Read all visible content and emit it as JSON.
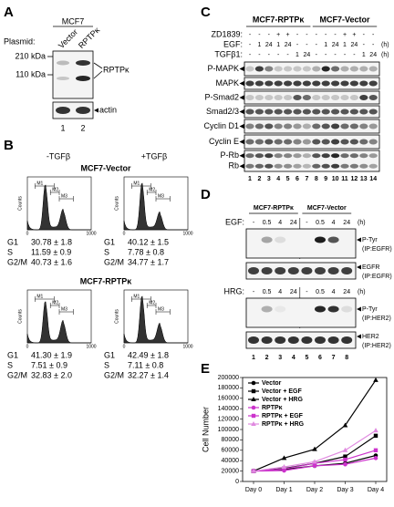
{
  "panels": {
    "A": {
      "letter": "A",
      "cell_line": "MCF7",
      "plasmid_label": "Plasmid:",
      "plasmids": [
        "Vector",
        "RPTPκ"
      ],
      "size_markers": [
        "210 kDa",
        "110 kDa"
      ],
      "bands": [
        "RPTPκ",
        "actin"
      ],
      "lanes": [
        1,
        2
      ]
    },
    "B": {
      "letter": "B",
      "conditions": [
        "-TGFβ",
        "+TGFβ"
      ],
      "y_axis_label": "Counts",
      "x_ticks": [
        "0",
        "1000"
      ],
      "gates": [
        "M1",
        "M2",
        "M3"
      ],
      "groups": [
        {
          "name": "MCF7-Vector",
          "plots": [
            {
              "stats": [
                {
                  "phase": "G1",
                  "value": "30.78 ± 1.8"
                },
                {
                  "phase": "S",
                  "value": "11.59 ± 0.9"
                },
                {
                  "phase": "G2/M",
                  "value": "40.73 ± 1.6"
                }
              ]
            },
            {
              "stats": [
                {
                  "phase": "G1",
                  "value": "40.12 ± 1.5"
                },
                {
                  "phase": "S",
                  "value": "7.78 ± 0.8"
                },
                {
                  "phase": "G2/M",
                  "value": "34.77 ± 1.7"
                }
              ]
            }
          ]
        },
        {
          "name": "MCF7-RPTPκ",
          "plots": [
            {
              "stats": [
                {
                  "phase": "G1",
                  "value": "41.30 ± 1.9"
                },
                {
                  "phase": "S",
                  "value": "7.51 ± 0.9"
                },
                {
                  "phase": "G2/M",
                  "value": "32.83 ± 2.0"
                }
              ]
            },
            {
              "stats": [
                {
                  "phase": "G1",
                  "value": "42.49 ± 1.8"
                },
                {
                  "phase": "S",
                  "value": "7.11 ± 0.8"
                },
                {
                  "phase": "G2/M",
                  "value": "32.27 ± 1.4"
                }
              ]
            }
          ]
        }
      ]
    },
    "C": {
      "letter": "C",
      "groups": [
        "MCF7-RPTPκ",
        "MCF7-Vector"
      ],
      "treatments": [
        {
          "label": "ZD1839:",
          "values": [
            "-",
            "-",
            "-",
            "+",
            "+",
            "-",
            "-",
            "-",
            "-",
            "-",
            "+",
            "+",
            "-",
            "-"
          ]
        },
        {
          "label": "EGF:",
          "values": [
            "-",
            "1",
            "24",
            "1",
            "24",
            "-",
            "-",
            "-",
            "1",
            "24",
            "1",
            "24",
            "-",
            "-"
          ],
          "unit": "(h)"
        },
        {
          "label": "TGFβ1:",
          "values": [
            "-",
            "-",
            "-",
            "-",
            "-",
            "1",
            "24",
            "-",
            "-",
            "-",
            "-",
            "-",
            "1",
            "24"
          ],
          "unit": "(h)"
        }
      ],
      "blots": [
        {
          "labels": [
            "P-MAPK"
          ]
        },
        {
          "labels": [
            "MAPK"
          ]
        },
        {
          "labels": [
            "P-Smad2"
          ]
        },
        {
          "labels": [
            "Smad2/3"
          ]
        },
        {
          "labels": [
            "Cyclin D1"
          ]
        },
        {
          "labels": [
            "Cyclin E"
          ]
        },
        {
          "labels": [
            "P-Rb",
            "Rb"
          ]
        }
      ],
      "lanes": [
        1,
        2,
        3,
        4,
        5,
        6,
        7,
        8,
        9,
        10,
        11,
        12,
        13,
        14
      ]
    },
    "D": {
      "letter": "D",
      "groups": [
        "MCF7-RPTPκ",
        "MCF7-Vector"
      ],
      "sections": [
        {
          "treatment": "EGF:",
          "values": [
            "-",
            "0.5",
            "4",
            "24",
            "-",
            "0.5",
            "4",
            "24"
          ],
          "unit": "(h)",
          "blots": [
            {
              "labels": [
                "P-Tyr",
                "(IP:EGFR)"
              ]
            },
            {
              "labels": [
                "EGFR",
                "(IP:EGFR)"
              ]
            }
          ]
        },
        {
          "treatment": "HRG:",
          "values": [
            "-",
            "0.5",
            "4",
            "24",
            "-",
            "0.5",
            "4",
            "24"
          ],
          "unit": "(h)",
          "blots": [
            {
              "labels": [
                "P-Tyr",
                "(IP:HER2)"
              ]
            },
            {
              "labels": [
                "HER2",
                "(IP:HER2)"
              ]
            }
          ]
        }
      ],
      "lanes": [
        1,
        2,
        3,
        4,
        5,
        6,
        7,
        8
      ]
    },
    "E": {
      "letter": "E"
    }
  },
  "chart_data": {
    "type": "line",
    "y_axis_label": "Cell Number",
    "categories": [
      "Day 0",
      "Day 1",
      "Day 2",
      "Day 3",
      "Day 4"
    ],
    "ylim": [
      0,
      200000
    ],
    "yticks": [
      0,
      20000,
      40000,
      60000,
      80000,
      100000,
      120000,
      140000,
      160000,
      180000,
      200000
    ],
    "legend": "upper left",
    "series": [
      {
        "name": "Vector",
        "color": "#000000",
        "marker": "circle",
        "values": [
          20000,
          23000,
          30000,
          35000,
          50000
        ]
      },
      {
        "name": "Vector + EGF",
        "color": "#000000",
        "marker": "square",
        "values": [
          20000,
          25000,
          35000,
          48000,
          88000
        ]
      },
      {
        "name": "Vector + HRG",
        "color": "#000000",
        "marker": "triangle",
        "values": [
          20000,
          45000,
          62000,
          108000,
          195000
        ]
      },
      {
        "name": "RPTPκ",
        "color": "#cc33cc",
        "marker": "circle",
        "values": [
          20000,
          21000,
          30000,
          33000,
          45000
        ]
      },
      {
        "name": "RPTPκ + EGF",
        "color": "#cc33cc",
        "marker": "square",
        "values": [
          20000,
          24000,
          35000,
          42000,
          60000
        ]
      },
      {
        "name": "RPTPκ + HRG",
        "color": "#e08ae0",
        "marker": "triangle",
        "values": [
          20000,
          28000,
          38000,
          60000,
          98000
        ]
      }
    ]
  }
}
